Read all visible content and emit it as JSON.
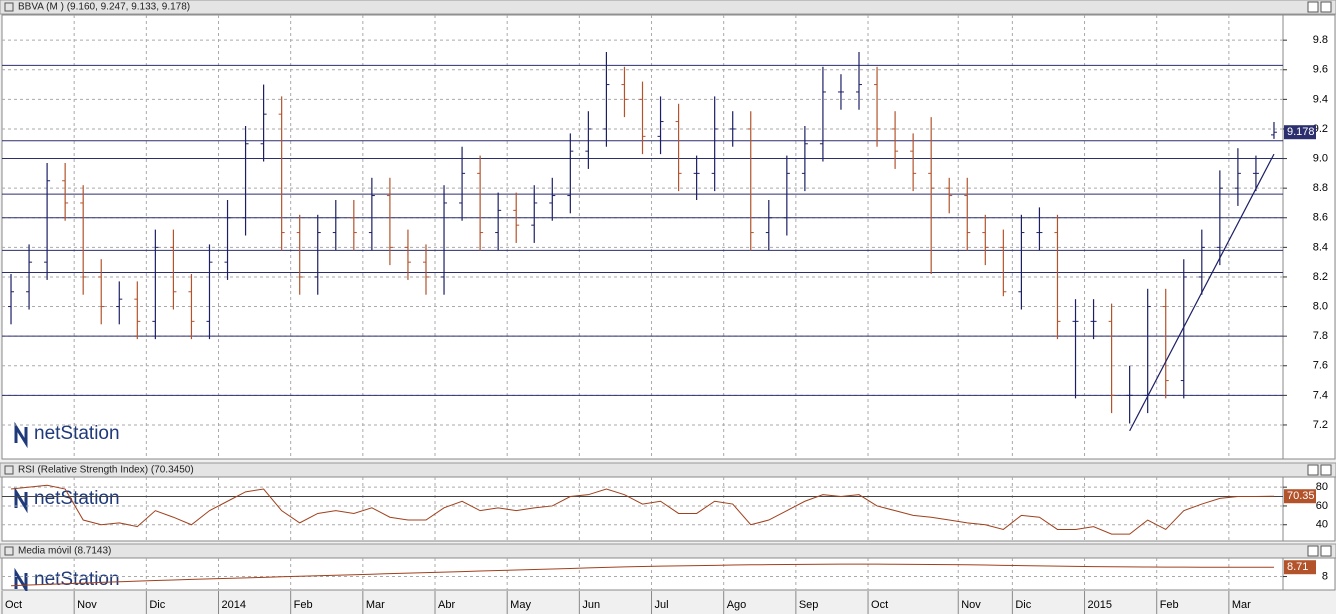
{
  "chart_data": [
    {
      "type": "ohlc",
      "title": "BBVA (M ) (9.160, 9.247, 9.133, 9.178)",
      "watermark": "netStation",
      "last_label": "9.178",
      "categories": [
        "Oct",
        null,
        null,
        null,
        "Nov",
        null,
        null,
        null,
        "Dic",
        null,
        null,
        null,
        "2014",
        null,
        null,
        null,
        "Feb",
        null,
        null,
        null,
        "Mar",
        null,
        null,
        null,
        "Abr",
        null,
        null,
        null,
        "May",
        null,
        null,
        null,
        "Jun",
        null,
        null,
        null,
        "Jul",
        null,
        null,
        null,
        "Ago",
        null,
        null,
        null,
        "Sep",
        null,
        null,
        null,
        "Oct",
        null,
        null,
        null,
        null,
        "Nov",
        null,
        null,
        "Dic",
        null,
        null,
        null,
        "2015",
        null,
        null,
        null,
        "Feb",
        null,
        null,
        null,
        "Mar",
        null,
        null
      ],
      "up_color": "#1c1f66",
      "down_color": "#b3532b",
      "series": [
        {
          "name": "open",
          "values": [
            8.0,
            8.1,
            8.3,
            8.85,
            8.7,
            8.2,
            8.0,
            8.05,
            7.9,
            8.4,
            8.1,
            7.9,
            8.3,
            8.6,
            9.1,
            9.3,
            8.5,
            8.2,
            8.5,
            8.6,
            8.5,
            8.75,
            8.4,
            8.3,
            8.2,
            8.7,
            8.9,
            8.5,
            8.65,
            8.55,
            8.7,
            8.75,
            9.05,
            9.2,
            9.5,
            9.4,
            9.15,
            9.25,
            8.9,
            8.9,
            9.2,
            9.2,
            8.5,
            8.6,
            8.9,
            9.1,
            9.45,
            9.45,
            9.5,
            9.2,
            9.05,
            8.9,
            8.8,
            8.75,
            8.5,
            8.4,
            8.1,
            8.5,
            8.5,
            7.9,
            7.9,
            7.9,
            7.4,
            7.4,
            8.0,
            7.5,
            8.2,
            8.4,
            8.8,
            8.9,
            9.16
          ]
        },
        {
          "name": "high",
          "values": [
            8.22,
            8.42,
            8.97,
            8.97,
            8.82,
            8.32,
            8.17,
            8.17,
            8.52,
            8.52,
            8.22,
            8.42,
            8.72,
            9.22,
            9.5,
            9.42,
            8.62,
            8.62,
            8.72,
            8.72,
            8.87,
            8.87,
            8.52,
            8.42,
            8.82,
            9.08,
            9.02,
            8.77,
            8.77,
            8.82,
            8.87,
            9.17,
            9.32,
            9.72,
            9.62,
            9.52,
            9.42,
            9.37,
            9.02,
            9.42,
            9.32,
            9.32,
            8.72,
            9.02,
            9.22,
            9.62,
            9.57,
            9.72,
            9.62,
            9.32,
            9.17,
            9.28,
            8.87,
            8.87,
            8.62,
            8.52,
            8.62,
            8.67,
            8.62,
            8.05,
            8.05,
            8.02,
            7.6,
            8.12,
            8.12,
            8.32,
            8.52,
            8.92,
            9.07,
            9.02,
            9.247
          ]
        },
        {
          "name": "low",
          "values": [
            7.88,
            7.98,
            8.18,
            8.58,
            8.08,
            7.88,
            7.88,
            7.78,
            7.78,
            7.98,
            7.78,
            7.78,
            8.18,
            8.48,
            8.98,
            8.38,
            8.08,
            8.08,
            8.38,
            8.38,
            8.38,
            8.28,
            8.18,
            8.08,
            8.08,
            8.58,
            8.38,
            8.38,
            8.43,
            8.43,
            8.58,
            8.63,
            8.93,
            9.08,
            9.28,
            9.03,
            9.03,
            8.78,
            8.72,
            8.78,
            9.08,
            8.38,
            8.38,
            8.48,
            8.78,
            8.98,
            9.33,
            9.33,
            9.08,
            8.93,
            8.78,
            8.22,
            8.63,
            8.38,
            8.28,
            8.07,
            7.98,
            8.38,
            7.78,
            7.38,
            7.78,
            7.28,
            7.21,
            7.28,
            7.38,
            7.38,
            8.08,
            8.28,
            8.68,
            8.78,
            9.133
          ]
        },
        {
          "name": "close",
          "values": [
            8.1,
            8.3,
            8.85,
            8.7,
            8.2,
            8.0,
            8.05,
            7.9,
            8.4,
            8.1,
            7.9,
            8.3,
            8.6,
            9.1,
            9.3,
            8.5,
            8.2,
            8.5,
            8.6,
            8.5,
            8.75,
            8.4,
            8.3,
            8.2,
            8.7,
            8.9,
            8.5,
            8.65,
            8.55,
            8.7,
            8.75,
            9.05,
            9.2,
            9.5,
            9.4,
            9.15,
            9.25,
            8.9,
            8.9,
            9.2,
            9.2,
            8.5,
            8.6,
            8.9,
            9.1,
            9.45,
            9.45,
            9.5,
            9.2,
            9.05,
            8.9,
            8.8,
            8.75,
            8.5,
            8.4,
            8.1,
            8.5,
            8.5,
            7.9,
            7.9,
            7.9,
            7.4,
            7.4,
            8.0,
            7.5,
            8.2,
            8.4,
            8.8,
            8.9,
            8.9,
            9.178
          ]
        }
      ],
      "ylim": [
        6.97,
        9.97
      ],
      "yticks": [
        7.2,
        7.4,
        7.6,
        7.8,
        {
          "value": 8,
          "label": "8.0"
        },
        8.2,
        8.4,
        8.6,
        8.8,
        {
          "value": 9,
          "label": "9.0"
        },
        9.2,
        9.4,
        9.6,
        9.8
      ],
      "levels": [
        9.63,
        9.12,
        9.0,
        8.76,
        8.6,
        8.38,
        8.23,
        7.8,
        7.4
      ],
      "trendline": {
        "start_index": 62,
        "start_value": 7.16,
        "end_index": 70,
        "end_value": 9.03
      },
      "grid": true
    },
    {
      "type": "line",
      "title": "RSI (Relative Strength Index) (70.3450)",
      "watermark": "netStation",
      "last_label": "70.35",
      "color": "#a0401c",
      "values": [
        78,
        80,
        82,
        78,
        45,
        40,
        42,
        38,
        55,
        48,
        40,
        55,
        65,
        75,
        78,
        55,
        42,
        52,
        55,
        52,
        58,
        48,
        45,
        45,
        58,
        65,
        55,
        58,
        55,
        58,
        60,
        70,
        72,
        78,
        72,
        62,
        65,
        52,
        52,
        65,
        62,
        40,
        45,
        55,
        65,
        72,
        70,
        72,
        60,
        55,
        50,
        48,
        45,
        42,
        40,
        35,
        50,
        48,
        35,
        35,
        38,
        30,
        30,
        45,
        35,
        55,
        62,
        68,
        70,
        70,
        70.35
      ],
      "ylim": [
        22.7,
        90.8
      ],
      "yticks": [
        40,
        60,
        80
      ],
      "levels": [
        70
      ],
      "grid": true
    },
    {
      "type": "line",
      "title": "Media móvil (8.7143)",
      "watermark": "netStation",
      "last_label": "8.71",
      "color": "#a0401c",
      "values": [
        7.3,
        7.35,
        7.4,
        7.45,
        7.5,
        7.55,
        7.6,
        7.65,
        7.7,
        7.74,
        7.78,
        7.82,
        7.86,
        7.9,
        7.94,
        7.98,
        8.02,
        8.06,
        8.1,
        8.14,
        8.18,
        8.22,
        8.26,
        8.3,
        8.34,
        8.38,
        8.42,
        8.46,
        8.5,
        8.54,
        8.58,
        8.62,
        8.66,
        8.7,
        8.74,
        8.77,
        8.8,
        8.82,
        8.84,
        8.86,
        8.88,
        8.9,
        8.91,
        8.92,
        8.93,
        8.94,
        8.95,
        8.95,
        8.95,
        8.94,
        8.93,
        8.92,
        8.91,
        8.9,
        8.88,
        8.86,
        8.84,
        8.82,
        8.8,
        8.78,
        8.76,
        8.75,
        8.74,
        8.73,
        8.72,
        8.72,
        8.71,
        8.71,
        8.71,
        8.71,
        8.7143
      ],
      "ylim": [
        6.97,
        9.42
      ],
      "yticks": [
        8
      ],
      "levels": [],
      "grid": true
    }
  ]
}
